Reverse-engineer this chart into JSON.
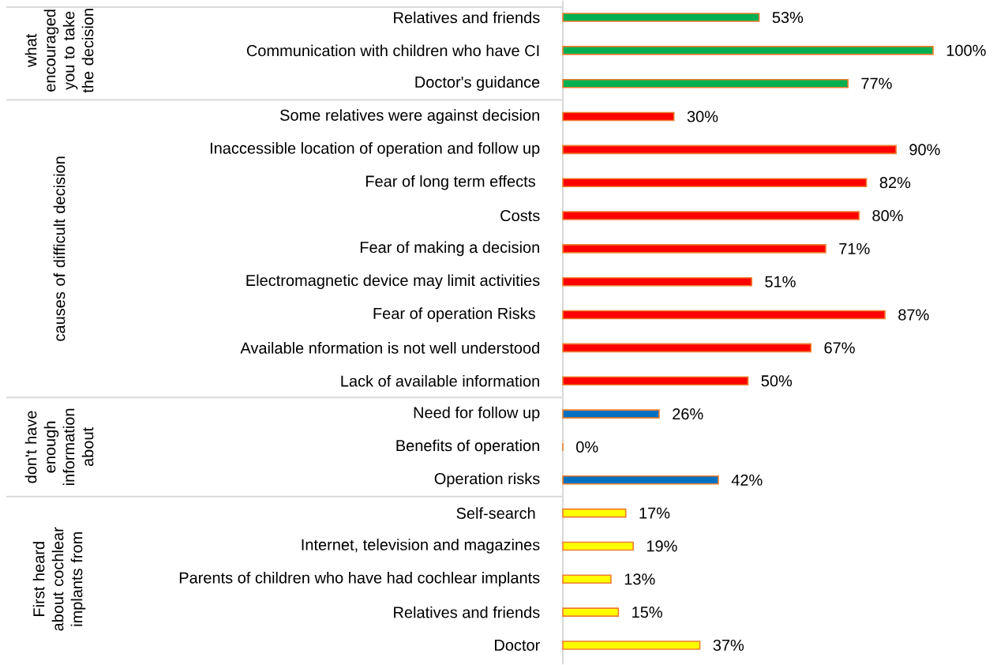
{
  "chart_data": {
    "type": "bar",
    "orientation": "horizontal",
    "tick_labels": "y",
    "categories": [
      "Relatives and friends",
      "Communication with children who have CI",
      "Doctor's guidance",
      "Some relatives were against decision",
      "Inaccessible location of operation and follow up",
      "Fear of long term effects ",
      "Costs",
      "Fear of making a decision",
      "Electromagnetic device may limit activities",
      "Fear of operation Risks ",
      "Available nformation is not well understood",
      "Lack of available information",
      "Need for follow up",
      "Benefits of operation",
      "Operation risks",
      "Self-search ",
      "Internet, television and magazines",
      "Parents of children who have had cochlear implants",
      "Relatives and friends",
      "Doctor"
    ],
    "values": [
      53,
      100,
      77,
      30,
      90,
      82,
      80,
      71,
      51,
      87,
      67,
      50,
      26,
      0,
      42,
      17,
      19,
      13,
      15,
      37
    ],
    "value_labels": [
      "53%",
      "100%",
      "77%",
      "30%",
      "90%",
      "82%",
      "80%",
      "71%",
      "51%",
      "87%",
      "67%",
      "50%",
      "26%",
      "0%",
      "42%",
      "17%",
      "19%",
      "13%",
      "15%",
      "37%"
    ],
    "colors": [
      "#00b050",
      "#00b050",
      "#00b050",
      "#ff0000",
      "#ff0000",
      "#ff0000",
      "#ff0000",
      "#ff0000",
      "#ff0000",
      "#ff0000",
      "#ff0000",
      "#ff0000",
      "#0070c0",
      "#0070c0",
      "#0070c0",
      "#ffff00",
      "#ffff00",
      "#ffff00",
      "#ffff00",
      "#ffff00"
    ],
    "annotations": [
      "what encouraged you to take the decision",
      "causes of difficult decision",
      "don't have enough information about",
      "First heard about cochlear implants from"
    ]
  }
}
